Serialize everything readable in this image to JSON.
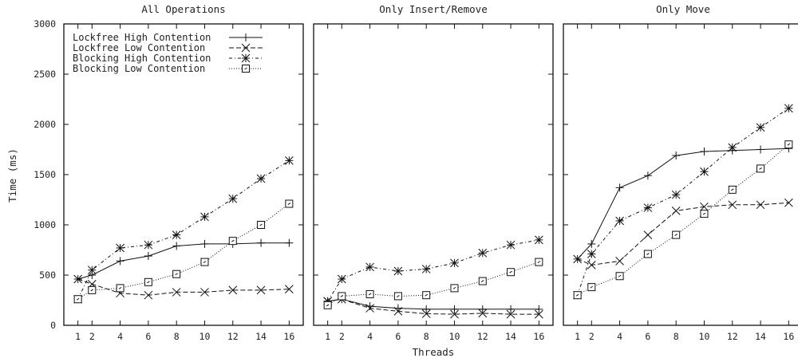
{
  "shared": {
    "ylabel": "Time (ms)",
    "xlabel": "Threads",
    "yticks": [
      0,
      500,
      1000,
      1500,
      2000,
      2500,
      3000
    ],
    "xticks": [
      1,
      2,
      4,
      6,
      8,
      10,
      12,
      14,
      16
    ],
    "legend": [
      "Lockfree High Contention",
      "Lockfree Low Contention",
      "Blocking High Contention",
      "Blocking Low Contention"
    ],
    "legend_placement": "top-left"
  },
  "chart_data": [
    {
      "type": "line",
      "title": "All Operations",
      "x": [
        1,
        2,
        4,
        6,
        8,
        10,
        12,
        14,
        16
      ],
      "ylim": [
        0,
        3000
      ],
      "series": [
        {
          "name": "Lockfree High Contention",
          "marker": "plus",
          "dash": "solid",
          "values": [
            460,
            500,
            640,
            690,
            790,
            810,
            810,
            820,
            820
          ]
        },
        {
          "name": "Lockfree Low Contention",
          "marker": "x",
          "dash": "dashed",
          "values": [
            460,
            410,
            320,
            300,
            330,
            330,
            350,
            350,
            360
          ]
        },
        {
          "name": "Blocking High Contention",
          "marker": "star",
          "dash": "dashdot",
          "values": [
            260,
            550,
            770,
            800,
            900,
            1080,
            1260,
            1460,
            1640
          ]
        },
        {
          "name": "Blocking Low Contention",
          "marker": "box",
          "dash": "dotted",
          "values": [
            260,
            350,
            370,
            430,
            510,
            630,
            840,
            1000,
            1210
          ]
        }
      ]
    },
    {
      "type": "line",
      "title": "Only Insert/Remove",
      "x": [
        1,
        2,
        4,
        6,
        8,
        10,
        12,
        14,
        16
      ],
      "ylim": [
        0,
        3000
      ],
      "series": [
        {
          "name": "Lockfree High Contention",
          "marker": "plus",
          "dash": "solid",
          "values": [
            240,
            260,
            190,
            170,
            160,
            160,
            160,
            160,
            160
          ]
        },
        {
          "name": "Lockfree Low Contention",
          "marker": "x",
          "dash": "dashed",
          "values": [
            240,
            260,
            170,
            140,
            115,
            110,
            120,
            110,
            110
          ]
        },
        {
          "name": "Blocking High Contention",
          "marker": "star",
          "dash": "dashdot",
          "values": [
            240,
            460,
            580,
            540,
            560,
            620,
            720,
            800,
            850
          ]
        },
        {
          "name": "Blocking Low Contention",
          "marker": "box",
          "dash": "dotted",
          "values": [
            200,
            290,
            310,
            290,
            300,
            370,
            440,
            530,
            630
          ]
        }
      ]
    },
    {
      "type": "line",
      "title": "Only Move",
      "x": [
        1,
        2,
        4,
        6,
        8,
        10,
        12,
        14,
        16
      ],
      "ylim": [
        0,
        3000
      ],
      "series": [
        {
          "name": "Lockfree High Contention",
          "marker": "plus",
          "dash": "solid",
          "values": [
            660,
            810,
            1370,
            1490,
            1690,
            1730,
            1740,
            1750,
            1760
          ]
        },
        {
          "name": "Lockfree Low Contention",
          "marker": "x",
          "dash": "dashed",
          "values": [
            660,
            600,
            640,
            900,
            1140,
            1180,
            1200,
            1200,
            1220
          ]
        },
        {
          "name": "Blocking High Contention",
          "marker": "star",
          "dash": "dashdot",
          "values": [
            300,
            710,
            1040,
            1170,
            1300,
            1530,
            1770,
            1970,
            2160
          ]
        },
        {
          "name": "Blocking Low Contention",
          "marker": "box",
          "dash": "dotted",
          "values": [
            300,
            380,
            490,
            710,
            900,
            1110,
            1350,
            1560,
            1800
          ]
        }
      ]
    }
  ]
}
